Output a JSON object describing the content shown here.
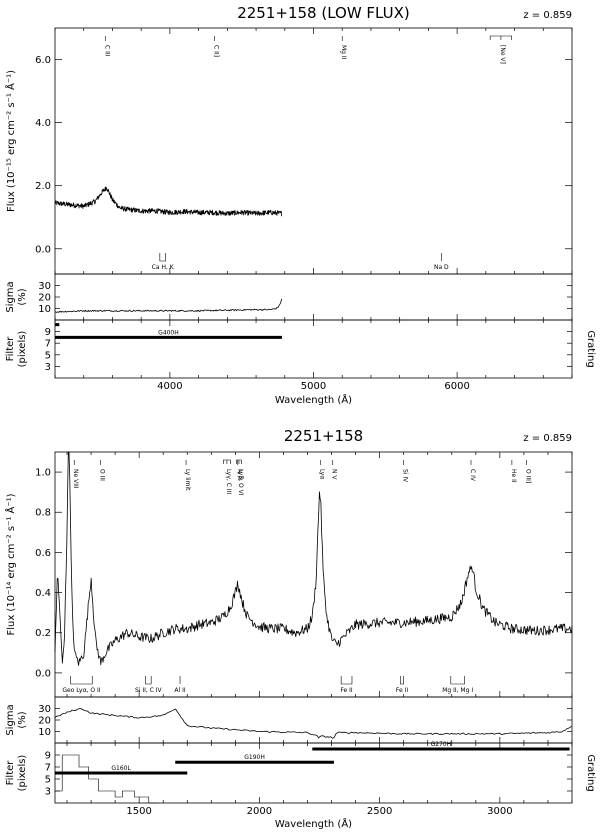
{
  "chart_data": [
    {
      "type": "line",
      "title": "2251+158 (LOW FLUX)",
      "redshift_label": "z = 0.859",
      "xlabel": "Wavelength (Å)",
      "flux_ylabel": "Flux (10⁻¹⁵ erg cm⁻² s⁻¹ Å⁻¹)",
      "sigma_ylabel": [
        "Sigma",
        "(%)"
      ],
      "filter_ylabel": [
        "Filter",
        "(pixels)"
      ],
      "grating_label": "Grating",
      "xlim": [
        3200,
        6800
      ],
      "flux_ylim": [
        -0.8,
        7.0
      ],
      "sigma_ylim": [
        0,
        40
      ],
      "filter_ylim": [
        1,
        11
      ],
      "xticks": [
        4000,
        5000,
        6000
      ],
      "flux_yticks": [
        0.0,
        2.0,
        4.0,
        6.0
      ],
      "flux_ytick_labels": [
        "0.0",
        "2.0",
        "4.0",
        "6.0"
      ],
      "sigma_yticks": [
        10,
        20,
        30
      ],
      "filter_yticks": [
        3,
        5,
        7,
        9
      ],
      "spectrum": {
        "x": [
          3200,
          3300,
          3400,
          3480,
          3520,
          3560,
          3600,
          3650,
          3700,
          3800,
          3900,
          4000,
          4100,
          4200,
          4300,
          4400,
          4500,
          4600,
          4700,
          4780
        ],
        "y": [
          1.45,
          1.4,
          1.35,
          1.5,
          1.75,
          1.95,
          1.55,
          1.3,
          1.25,
          1.2,
          1.2,
          1.15,
          1.18,
          1.15,
          1.15,
          1.12,
          1.15,
          1.12,
          1.15,
          1.12
        ],
        "noise": 0.08
      },
      "sigma": {
        "x": [
          3200,
          3400,
          3800,
          4200,
          4600,
          4700,
          4740,
          4760,
          4780
        ],
        "y": [
          7,
          8,
          8,
          8,
          9,
          9,
          10,
          12,
          18
        ]
      },
      "filter_bars": [
        {
          "label": "G400H",
          "x_start": 3200,
          "x_end": 4780,
          "y": 8
        },
        {
          "label": "",
          "x_start": 3200,
          "x_end": 3230,
          "y": 10.2
        }
      ],
      "emission_marks": [
        {
          "label": "C III",
          "x": 3550
        },
        {
          "label": "C II]",
          "x": 4310
        },
        {
          "label": "Mg II",
          "x": 5200
        },
        {
          "label": "[Ne V]",
          "x_start": 6230,
          "x_end": 6380
        }
      ],
      "absorption_marks": [
        {
          "label": "Ca H, K",
          "x_start": 3930,
          "x_end": 3970
        },
        {
          "label": "Na D",
          "x": 5890
        }
      ]
    },
    {
      "type": "line",
      "title": "2251+158",
      "redshift_label": "z = 0.859",
      "xlabel": "Wavelength (Å)",
      "flux_ylabel": "Flux (10⁻¹⁴ erg cm⁻² s⁻¹ Å⁻¹)",
      "sigma_ylabel": [
        "Sigma",
        "(%)"
      ],
      "filter_ylabel": [
        "Filter",
        "(pixels)"
      ],
      "grating_label": "Grating",
      "xlim": [
        1150,
        3300
      ],
      "flux_ylim": [
        -0.12,
        1.1
      ],
      "sigma_ylim": [
        0,
        40
      ],
      "filter_ylim": [
        1,
        11
      ],
      "xticks": [
        1500,
        2000,
        2500,
        3000
      ],
      "flux_yticks": [
        0.0,
        0.2,
        0.4,
        0.6,
        0.8,
        1.0
      ],
      "flux_ytick_labels": [
        "0.0",
        "0.2",
        "0.4",
        "0.6",
        "0.8",
        "1.0"
      ],
      "sigma_yticks": [
        10,
        20,
        30
      ],
      "filter_yticks": [
        3,
        5,
        7,
        9
      ],
      "spectrum": {
        "x": [
          1150,
          1160,
          1170,
          1180,
          1190,
          1200,
          1205,
          1210,
          1215,
          1220,
          1225,
          1235,
          1250,
          1270,
          1290,
          1300,
          1310,
          1320,
          1340,
          1360,
          1400,
          1450,
          1500,
          1550,
          1600,
          1650,
          1700,
          1750,
          1800,
          1850,
          1880,
          1900,
          1910,
          1930,
          1950,
          2000,
          2050,
          2100,
          2150,
          2200,
          2220,
          2235,
          2245,
          2250,
          2255,
          2265,
          2280,
          2300,
          2320,
          2400,
          2500,
          2600,
          2700,
          2800,
          2840,
          2870,
          2885,
          2900,
          2930,
          2980,
          3050,
          3150,
          3250,
          3300
        ],
        "y": [
          0.1,
          0.5,
          0.3,
          0.05,
          0.2,
          0.7,
          1.2,
          1.1,
          0.7,
          0.4,
          0.2,
          0.08,
          0.05,
          0.1,
          0.35,
          0.48,
          0.3,
          0.15,
          0.05,
          0.1,
          0.16,
          0.2,
          0.18,
          0.17,
          0.2,
          0.22,
          0.22,
          0.24,
          0.25,
          0.28,
          0.33,
          0.4,
          0.45,
          0.35,
          0.28,
          0.23,
          0.22,
          0.22,
          0.2,
          0.22,
          0.28,
          0.45,
          0.75,
          0.92,
          0.85,
          0.5,
          0.28,
          0.17,
          0.14,
          0.24,
          0.25,
          0.25,
          0.26,
          0.28,
          0.35,
          0.5,
          0.53,
          0.42,
          0.32,
          0.25,
          0.22,
          0.21,
          0.22,
          0.22
        ],
        "noise": 0.025
      },
      "sigma": {
        "x": [
          1150,
          1180,
          1220,
          1260,
          1300,
          1400,
          1500,
          1600,
          1650,
          1700,
          1800,
          2000,
          2200,
          2240,
          2250,
          2255,
          2300,
          2310,
          2320,
          2400,
          2600,
          2800,
          3000,
          3200,
          3260,
          3300
        ],
        "y": [
          22,
          25,
          28,
          30,
          26,
          24,
          22,
          24,
          30,
          15,
          13,
          10,
          9,
          6,
          4,
          6,
          5,
          4,
          9,
          9,
          8,
          8,
          8,
          9,
          10,
          15
        ]
      },
      "filter_bars": [
        {
          "label": "G160L",
          "x_start": 1150,
          "x_end": 1700,
          "y": 6
        },
        {
          "label": "G190H",
          "x_start": 1650,
          "x_end": 2310,
          "y": 7.8
        },
        {
          "label": "G270H",
          "x_start": 2220,
          "x_end": 3290,
          "y": 10
        }
      ],
      "filter_steps": {
        "x": [
          1150,
          1180,
          1180,
          1250,
          1250,
          1290,
          1290,
          1330,
          1330,
          1400,
          1400,
          1430,
          1430,
          1480,
          1480,
          1540,
          1540,
          1580
        ],
        "y": [
          3,
          3,
          9,
          9,
          7,
          7,
          5,
          5,
          3,
          3,
          2,
          2,
          3,
          3,
          2,
          2,
          1,
          1
        ]
      },
      "emission_marks": [
        {
          "label": "Ne VIII",
          "x": 1230
        },
        {
          "label": "O III",
          "x": 1340
        },
        {
          "label": "Ly limit",
          "x": 1695
        },
        {
          "label": "N III",
          "x": 1910
        },
        {
          "label": "Lyγ, C III",
          "x_start": 1850,
          "x_end": 1880
        },
        {
          "label": "Lyβ, O VI",
          "x_start": 1905,
          "x_end": 1925
        },
        {
          "label": "Lyα",
          "x": 2255
        },
        {
          "label": "N V",
          "x": 2305
        },
        {
          "label": "Si IV",
          "x": 2600
        },
        {
          "label": "C IV",
          "x": 2880
        },
        {
          "label": "He II",
          "x": 3050
        },
        {
          "label": "O III]",
          "x": 3110
        }
      ],
      "absorption_marks": [
        {
          "label": "Geo Lyα, O II",
          "x_start": 1215,
          "x_end": 1305
        },
        {
          "label": "Si II, C IV",
          "x_start": 1526,
          "x_end": 1550
        },
        {
          "label": "Al II",
          "x": 1670
        },
        {
          "label": "Fe II",
          "x_start": 2340,
          "x_end": 2385
        },
        {
          "label": "Fe II",
          "x_start": 2586,
          "x_end": 2600
        },
        {
          "label": "Mg II, Mg I",
          "x_start": 2796,
          "x_end": 2853
        }
      ]
    }
  ]
}
